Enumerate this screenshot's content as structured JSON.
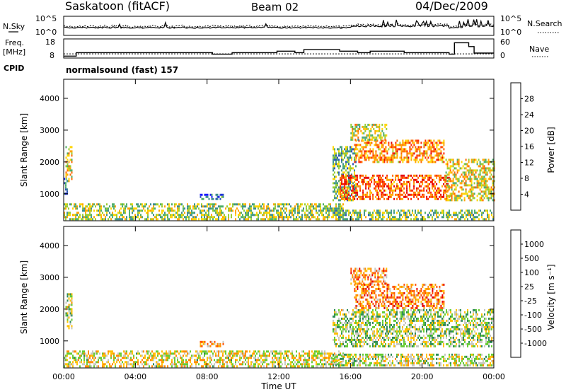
{
  "header": {
    "site": "Saskatoon (fitACF)",
    "beam": "Beam 02",
    "date": "04/Dec/2009"
  },
  "side_labels": {
    "nsky": "N.Sky",
    "nsearch": "N.Search",
    "freq_line1": "Freq.",
    "freq_line2": "[MHz]",
    "nave": "Nave",
    "cpid": "CPID"
  },
  "cpid_text": "normalsound (fast) 157",
  "chart_data": [
    {
      "type": "line",
      "panel": "noise",
      "y_ticks_left": [
        "10^5",
        "10^0"
      ],
      "y_ticks_right": [
        "10^5",
        "10^0"
      ],
      "series": [
        {
          "name": "N.Sky",
          "style": "solid"
        },
        {
          "name": "N.Search",
          "style": "dotted"
        }
      ],
      "xlim": [
        0,
        24
      ]
    },
    {
      "type": "line",
      "panel": "freq-nave",
      "y_ticks_left": [
        "18",
        "8"
      ],
      "y_ticks_right": [
        "60",
        "0"
      ],
      "series": [
        {
          "name": "Freq. [MHz]",
          "style": "solid",
          "points": [
            [
              0,
              9
            ],
            [
              0.7,
              10.8
            ],
            [
              1.8,
              10.8
            ],
            [
              2.5,
              10.8
            ],
            [
              8,
              10.8
            ],
            [
              8.3,
              10
            ],
            [
              9.1,
              10
            ],
            [
              9.4,
              10.8
            ],
            [
              11.6,
              10.8
            ],
            [
              11.9,
              11.6
            ],
            [
              12.7,
              11.6
            ],
            [
              12.9,
              10.8
            ],
            [
              13.2,
              10.8
            ],
            [
              13.4,
              12.4
            ],
            [
              15.2,
              12.4
            ],
            [
              15.4,
              11.6
            ],
            [
              16.2,
              11.6
            ],
            [
              16.4,
              10.8
            ],
            [
              16.9,
              10.8
            ],
            [
              17.1,
              11.6
            ],
            [
              18.8,
              11.6
            ],
            [
              19,
              10.8
            ],
            [
              21.3,
              10.8
            ],
            [
              21.5,
              10
            ],
            [
              21.7,
              10
            ],
            [
              21.8,
              16
            ],
            [
              22.4,
              16
            ],
            [
              22.6,
              14
            ],
            [
              22.8,
              14
            ],
            [
              22.9,
              10.6
            ],
            [
              24,
              10.6
            ]
          ]
        },
        {
          "name": "Nave",
          "style": "dotted",
          "value": 13
        }
      ],
      "xlim": [
        0,
        24
      ],
      "ylim": [
        8,
        18
      ]
    },
    {
      "type": "heatmap",
      "panel": "power",
      "ylabel": "Slant Range [km]",
      "ylim": [
        150,
        4600
      ],
      "xlim": [
        0,
        24
      ],
      "y_ticks": [
        1000,
        2000,
        3000,
        4000
      ],
      "x_ticks": [
        "00:00",
        "04:00",
        "08:00",
        "12:00",
        "16:00",
        "20:00",
        "00:00"
      ],
      "colorbar": {
        "label": "Power [dB]",
        "ticks": [
          "4",
          "8",
          "12",
          "16",
          "20",
          "24",
          "28"
        ],
        "colors": [
          "#1a1aff",
          "#2e56b8",
          "#3f8f8f",
          "#4fae6a",
          "#9acd32",
          "#ffd400",
          "#ffa500",
          "#ff6a00",
          "#ff2a00",
          "#e60000"
        ]
      },
      "regions": [
        {
          "t0": 0.0,
          "t1": 15.6,
          "r0": 200,
          "r1": 700,
          "level": 0.45
        },
        {
          "t0": 0.1,
          "t1": 0.45,
          "r0": 1400,
          "r1": 2500,
          "level": 0.55
        },
        {
          "t0": 0.0,
          "t1": 0.2,
          "r0": 1000,
          "r1": 1500,
          "level": 0.2
        },
        {
          "t0": 7.6,
          "t1": 8.9,
          "r0": 850,
          "r1": 1000,
          "level": 0.2
        },
        {
          "t0": 15.0,
          "t1": 16.3,
          "r0": 800,
          "r1": 2500,
          "level": 0.35
        },
        {
          "t0": 15.4,
          "t1": 21.5,
          "r0": 800,
          "r1": 1600,
          "level": 0.8
        },
        {
          "t0": 16.2,
          "t1": 21.2,
          "r0": 2000,
          "r1": 2700,
          "level": 0.7
        },
        {
          "t0": 16.0,
          "t1": 18.0,
          "r0": 2700,
          "r1": 3200,
          "level": 0.5
        },
        {
          "t0": 21.3,
          "t1": 24.0,
          "r0": 800,
          "r1": 2100,
          "level": 0.55
        },
        {
          "t0": 15.0,
          "t1": 24.0,
          "r0": 200,
          "r1": 500,
          "level": 0.4
        }
      ]
    },
    {
      "type": "heatmap",
      "panel": "velocity",
      "ylabel": "Slant Range [km]",
      "xlabel": "Time UT",
      "ylim": [
        150,
        4600
      ],
      "xlim": [
        0,
        24
      ],
      "y_ticks": [
        1000,
        2000,
        3000,
        4000
      ],
      "x_ticks": [
        "00:00",
        "04:00",
        "08:00",
        "12:00",
        "16:00",
        "20:00",
        "00:00"
      ],
      "colorbar": {
        "label": "Velocity [m s⁻¹]",
        "ticks": [
          "1000",
          "500",
          "100",
          "25",
          "-25",
          "-100",
          "-500",
          "-1000"
        ],
        "colors": [
          "#1a1aff",
          "#2e56b8",
          "#2e8b57",
          "#66cc33",
          "#c8c8c0",
          "#ffc000",
          "#ff8c00",
          "#ff5000",
          "#e60000"
        ]
      },
      "regions": [
        {
          "t0": 0.0,
          "t1": 15.6,
          "r0": 200,
          "r1": 700,
          "level": 0.55
        },
        {
          "t0": 0.1,
          "t1": 0.45,
          "r0": 1400,
          "r1": 2500,
          "level": 0.45
        },
        {
          "t0": 7.6,
          "t1": 8.9,
          "r0": 850,
          "r1": 1000,
          "level": 0.65
        },
        {
          "t0": 15.0,
          "t1": 24.0,
          "r0": 800,
          "r1": 2000,
          "level": 0.45
        },
        {
          "t0": 16.2,
          "t1": 21.2,
          "r0": 2000,
          "r1": 2800,
          "level": 0.75
        },
        {
          "t0": 16.0,
          "t1": 18.0,
          "r0": 2800,
          "r1": 3300,
          "level": 0.7
        },
        {
          "t0": 15.0,
          "t1": 24.0,
          "r0": 200,
          "r1": 600,
          "level": 0.5
        }
      ]
    }
  ]
}
